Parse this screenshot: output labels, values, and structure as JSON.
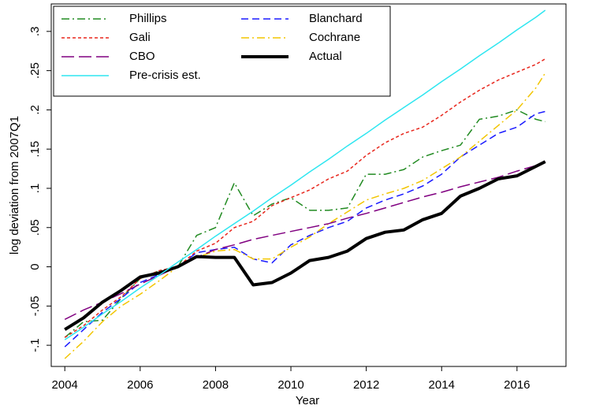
{
  "chart_data": {
    "type": "line",
    "x_label": "Year",
    "y_label": "log deviation from 2007Q1",
    "x": [
      2004,
      2004.5,
      2005,
      2005.5,
      2006,
      2006.5,
      2007,
      2007.5,
      2008,
      2008.5,
      2009,
      2009.5,
      2010,
      2010.5,
      2011,
      2011.5,
      2012,
      2012.5,
      2013,
      2013.5,
      2014,
      2014.5,
      2015,
      2015.5,
      2016,
      2016.5,
      2016.75
    ],
    "xlim": [
      2003.64,
      2017.3
    ],
    "xticks": [
      2004,
      2006,
      2008,
      2010,
      2012,
      2014,
      2016
    ],
    "ylim": [
      -0.127,
      0.335
    ],
    "yticks": [
      {
        "value": -0.1,
        "label": "-.1"
      },
      {
        "value": -0.05,
        "label": "-.05"
      },
      0,
      {
        "value": 0.05,
        "label": ".05"
      },
      {
        "value": 0.1,
        "label": ".1"
      },
      {
        "value": 0.15,
        "label": ".15"
      },
      {
        "value": 0.2,
        "label": ".2"
      },
      {
        "value": 0.25,
        "label": ".25"
      },
      {
        "value": 0.3,
        "label": ".3"
      }
    ],
    "grid": false,
    "legend": "top-left",
    "series": [
      {
        "name": "Phillips",
        "color": "#228b22",
        "style": "dash-dot",
        "values": [
          -0.09,
          -0.07,
          -0.068,
          -0.04,
          -0.015,
          -0.005,
          0.0,
          0.04,
          0.05,
          0.107,
          0.065,
          0.08,
          0.088,
          0.072,
          0.072,
          0.075,
          0.118,
          0.118,
          0.124,
          0.14,
          0.148,
          0.155,
          0.188,
          0.192,
          0.2,
          0.188,
          0.185
        ]
      },
      {
        "name": "Blanchard",
        "color": "#1a1aff",
        "style": "dash",
        "values": [
          -0.102,
          -0.08,
          -0.058,
          -0.04,
          -0.02,
          -0.01,
          0.0,
          0.018,
          0.022,
          0.025,
          0.01,
          0.005,
          0.028,
          0.04,
          0.05,
          0.058,
          0.075,
          0.085,
          0.093,
          0.103,
          0.118,
          0.14,
          0.155,
          0.17,
          0.178,
          0.195,
          0.198
        ]
      },
      {
        "name": "Gali",
        "color": "#e8261c",
        "style": "short-dash",
        "values": [
          -0.09,
          -0.075,
          -0.055,
          -0.038,
          -0.015,
          -0.005,
          0.0,
          0.02,
          0.03,
          0.05,
          0.058,
          0.078,
          0.088,
          0.098,
          0.112,
          0.122,
          0.142,
          0.158,
          0.17,
          0.178,
          0.193,
          0.21,
          0.225,
          0.238,
          0.248,
          0.258,
          0.265
        ]
      },
      {
        "name": "Cochrane",
        "color": "#f2c500",
        "style": "dash-dot",
        "values": [
          -0.117,
          -0.095,
          -0.07,
          -0.05,
          -0.035,
          -0.018,
          0.0,
          0.012,
          0.02,
          0.022,
          0.01,
          0.01,
          0.025,
          0.038,
          0.055,
          0.07,
          0.085,
          0.093,
          0.1,
          0.11,
          0.125,
          0.14,
          0.16,
          0.18,
          0.2,
          0.228,
          0.247
        ]
      },
      {
        "name": "CBO",
        "color": "#800080",
        "style": "long-dash",
        "values": [
          -0.067,
          -0.055,
          -0.045,
          -0.034,
          -0.022,
          -0.011,
          0.0,
          0.012,
          0.022,
          0.028,
          0.035,
          0.04,
          0.045,
          0.05,
          0.055,
          0.062,
          0.068,
          0.075,
          0.082,
          0.089,
          0.095,
          0.102,
          0.108,
          0.114,
          0.122,
          0.129,
          0.134
        ]
      },
      {
        "name": "Actual",
        "color": "#000000",
        "style": "thick",
        "values": [
          -0.08,
          -0.065,
          -0.045,
          -0.03,
          -0.013,
          -0.008,
          0.0,
          0.013,
          0.012,
          0.012,
          -0.023,
          -0.02,
          -0.008,
          0.008,
          0.012,
          0.02,
          0.036,
          0.044,
          0.047,
          0.06,
          0.068,
          0.09,
          0.1,
          0.112,
          0.116,
          0.128,
          0.134
        ]
      },
      {
        "name": "Pre-crisis est.",
        "color": "#2ee6f0",
        "style": "solid",
        "values": [
          -0.093,
          -0.077,
          -0.06,
          -0.044,
          -0.027,
          -0.011,
          0.006,
          0.022,
          0.039,
          0.055,
          0.071,
          0.088,
          0.104,
          0.121,
          0.137,
          0.154,
          0.17,
          0.187,
          0.203,
          0.219,
          0.236,
          0.252,
          0.269,
          0.285,
          0.302,
          0.318,
          0.327
        ]
      }
    ]
  }
}
